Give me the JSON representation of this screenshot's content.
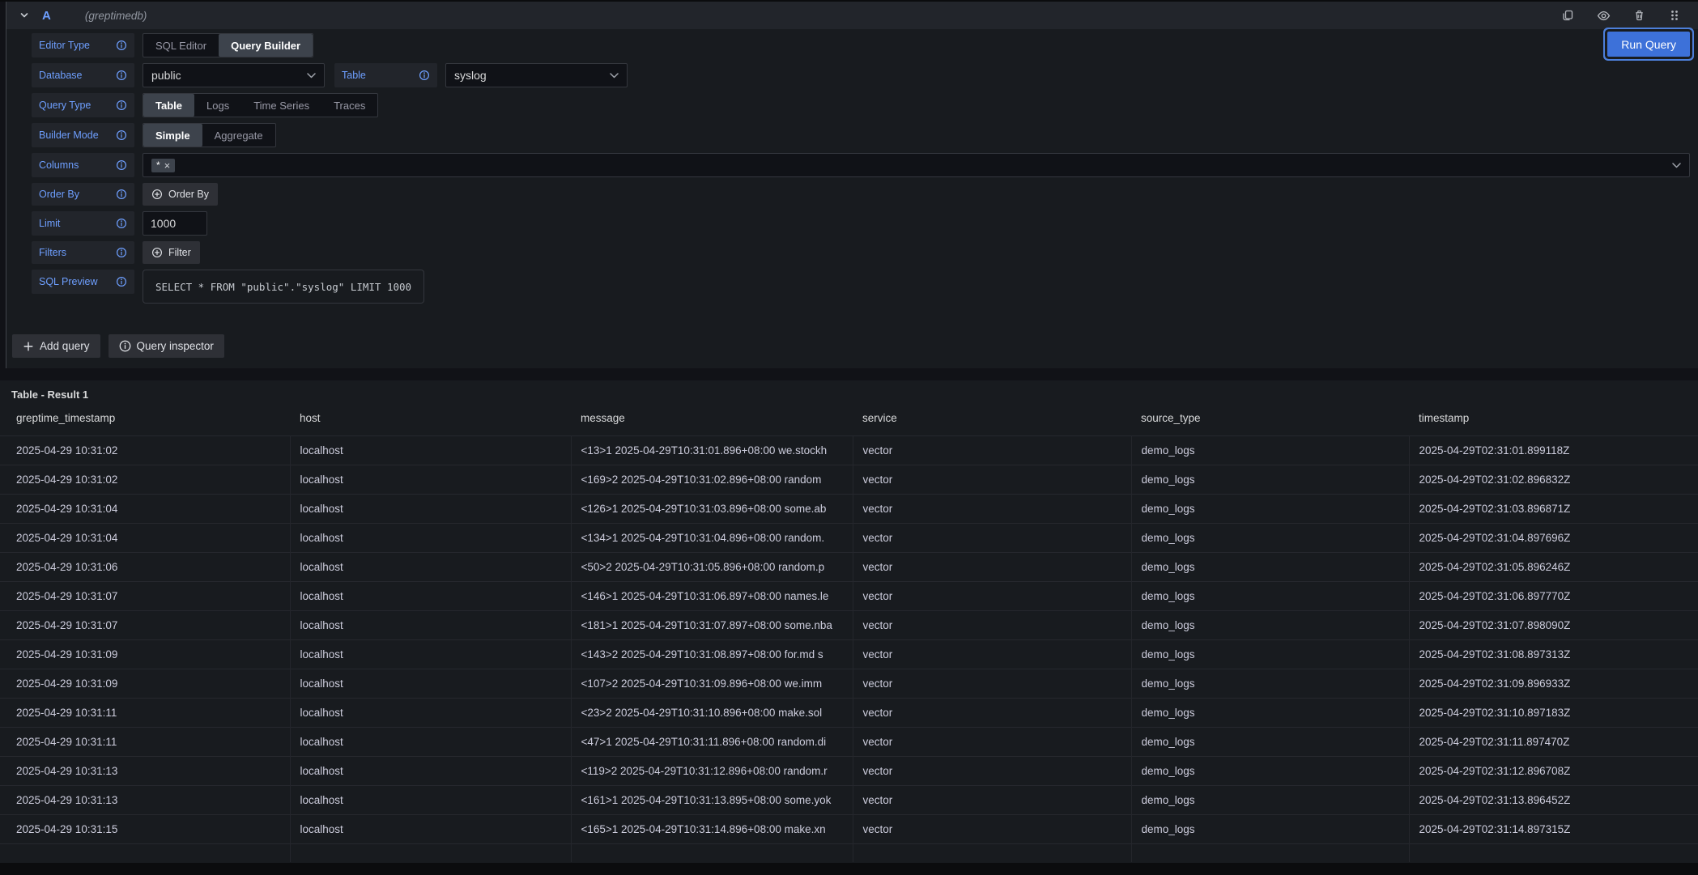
{
  "panel_header": {
    "ref_id": "A",
    "datasource_name": "(greptimedb)"
  },
  "toolbar": {
    "run_query_label": "Run Query"
  },
  "editor": {
    "editor_type": {
      "label": "Editor Type",
      "options": [
        "SQL Editor",
        "Query Builder"
      ],
      "selected": "Query Builder"
    },
    "database": {
      "label": "Database",
      "value": "public"
    },
    "table": {
      "label": "Table",
      "value": "syslog"
    },
    "query_type": {
      "label": "Query Type",
      "options": [
        "Table",
        "Logs",
        "Time Series",
        "Traces"
      ],
      "selected": "Table"
    },
    "builder_mode": {
      "label": "Builder Mode",
      "options": [
        "Simple",
        "Aggregate"
      ],
      "selected": "Simple"
    },
    "columns": {
      "label": "Columns",
      "chips": [
        "*"
      ]
    },
    "order_by": {
      "label": "Order By",
      "button_label": "Order By"
    },
    "limit": {
      "label": "Limit",
      "value": "1000"
    },
    "filters": {
      "label": "Filters",
      "button_label": "Filter"
    },
    "sql_preview": {
      "label": "SQL Preview",
      "sql": "SELECT * FROM \"public\".\"syslog\" LIMIT 1000"
    }
  },
  "footer": {
    "add_query_label": "Add query",
    "query_inspector_label": "Query inspector"
  },
  "results": {
    "title": "Table - Result 1",
    "columns": [
      "greptime_timestamp",
      "host",
      "message",
      "service",
      "source_type",
      "timestamp"
    ],
    "rows": [
      [
        "2025-04-29 10:31:02",
        "localhost",
        "<13>1 2025-04-29T10:31:01.896+08:00 we.stockh",
        "vector",
        "demo_logs",
        "2025-04-29T02:31:01.899118Z"
      ],
      [
        "2025-04-29 10:31:02",
        "localhost",
        "<169>2 2025-04-29T10:31:02.896+08:00 random",
        "vector",
        "demo_logs",
        "2025-04-29T02:31:02.896832Z"
      ],
      [
        "2025-04-29 10:31:04",
        "localhost",
        "<126>1 2025-04-29T10:31:03.896+08:00 some.ab",
        "vector",
        "demo_logs",
        "2025-04-29T02:31:03.896871Z"
      ],
      [
        "2025-04-29 10:31:04",
        "localhost",
        "<134>1 2025-04-29T10:31:04.896+08:00 random.",
        "vector",
        "demo_logs",
        "2025-04-29T02:31:04.897696Z"
      ],
      [
        "2025-04-29 10:31:06",
        "localhost",
        "<50>2 2025-04-29T10:31:05.896+08:00 random.p",
        "vector",
        "demo_logs",
        "2025-04-29T02:31:05.896246Z"
      ],
      [
        "2025-04-29 10:31:07",
        "localhost",
        "<146>1 2025-04-29T10:31:06.897+08:00 names.le",
        "vector",
        "demo_logs",
        "2025-04-29T02:31:06.897770Z"
      ],
      [
        "2025-04-29 10:31:07",
        "localhost",
        "<181>1 2025-04-29T10:31:07.897+08:00 some.nba",
        "vector",
        "demo_logs",
        "2025-04-29T02:31:07.898090Z"
      ],
      [
        "2025-04-29 10:31:09",
        "localhost",
        "<143>2 2025-04-29T10:31:08.897+08:00 for.md s",
        "vector",
        "demo_logs",
        "2025-04-29T02:31:08.897313Z"
      ],
      [
        "2025-04-29 10:31:09",
        "localhost",
        "<107>2 2025-04-29T10:31:09.896+08:00 we.imm",
        "vector",
        "demo_logs",
        "2025-04-29T02:31:09.896933Z"
      ],
      [
        "2025-04-29 10:31:11",
        "localhost",
        "<23>2 2025-04-29T10:31:10.896+08:00 make.sol",
        "vector",
        "demo_logs",
        "2025-04-29T02:31:10.897183Z"
      ],
      [
        "2025-04-29 10:31:11",
        "localhost",
        "<47>1 2025-04-29T10:31:11.896+08:00 random.di",
        "vector",
        "demo_logs",
        "2025-04-29T02:31:11.897470Z"
      ],
      [
        "2025-04-29 10:31:13",
        "localhost",
        "<119>2 2025-04-29T10:31:12.896+08:00 random.r",
        "vector",
        "demo_logs",
        "2025-04-29T02:31:12.896708Z"
      ],
      [
        "2025-04-29 10:31:13",
        "localhost",
        "<161>1 2025-04-29T10:31:13.895+08:00 some.yok",
        "vector",
        "demo_logs",
        "2025-04-29T02:31:13.896452Z"
      ],
      [
        "2025-04-29 10:31:15",
        "localhost",
        "<165>1 2025-04-29T10:31:14.896+08:00 make.xn",
        "vector",
        "demo_logs",
        "2025-04-29T02:31:14.897315Z"
      ]
    ]
  },
  "colors": {
    "accent_blue": "#3d71d9",
    "label_blue": "#6e9fff",
    "panel_bg": "#181b1f",
    "page_bg": "#111217"
  }
}
